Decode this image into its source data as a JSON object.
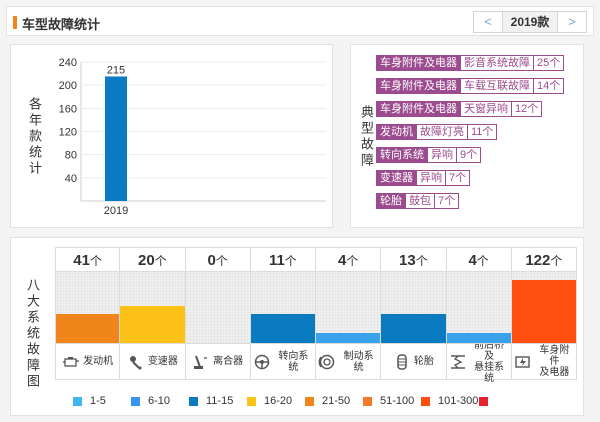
{
  "header": {
    "title": "车型故障统计",
    "year_selected": "2019款",
    "prev": "<",
    "next": ">"
  },
  "year_panel": {
    "ylabel": "各年款统计",
    "chart_data": {
      "type": "bar",
      "categories": [
        "2019"
      ],
      "values": [
        215
      ],
      "ylim": [
        0,
        240
      ],
      "yticks": [
        40,
        80,
        120,
        160,
        200,
        240
      ],
      "grid": true,
      "color": "#0b7bc1"
    }
  },
  "faults_panel": {
    "label": "典型故障",
    "items": [
      {
        "system": "车身附件及电器",
        "fault": "影音系统故障",
        "count": "25个"
      },
      {
        "system": "车身附件及电器",
        "fault": "车载互联故障",
        "count": "14个"
      },
      {
        "system": "车身附件及电器",
        "fault": "天窗异响",
        "count": "12个"
      },
      {
        "system": "发动机",
        "fault": "故障灯亮",
        "count": "11个"
      },
      {
        "system": "转向系统",
        "fault": "异响",
        "count": "9个"
      },
      {
        "system": "变速器",
        "fault": "异响",
        "count": "7个"
      },
      {
        "system": "轮胎",
        "fault": "鼓包",
        "count": "7个"
      }
    ]
  },
  "systems_panel": {
    "label": "八大系统故障图",
    "unit": "个",
    "systems": [
      {
        "name": "发动机",
        "count": 41,
        "level": 0.4,
        "color": "#f0861b",
        "icon": "engine-icon"
      },
      {
        "name": "变速器",
        "count": 20,
        "level": 0.52,
        "color": "#fcc217",
        "icon": "gearbox-icon"
      },
      {
        "name": "离合器",
        "count": 0,
        "level": 0,
        "color": "#f0f0f0",
        "icon": "clutch-icon"
      },
      {
        "name": "转向系统",
        "count": 11,
        "level": 0.4,
        "color": "#0b7bc1",
        "icon": "steering-wheel-icon"
      },
      {
        "name": "制动系统",
        "count": 4,
        "level": 0.14,
        "color": "#3aa2ea",
        "icon": "brake-icon"
      },
      {
        "name": "轮胎",
        "count": 13,
        "level": 0.4,
        "color": "#0b7bc1",
        "icon": "tire-icon"
      },
      {
        "name": "前后桥及悬挂系统",
        "count": 4,
        "level": 0.14,
        "color": "#3aa2ea",
        "icon": "suspension-icon"
      },
      {
        "name": "车身附件及电器",
        "count": 122,
        "level": 0.88,
        "color": "#fe4f10",
        "icon": "body-electric-icon"
      }
    ],
    "legend": [
      {
        "label": "1-5",
        "color": "#3fb7f2"
      },
      {
        "label": "6-10",
        "color": "#3a93ee"
      },
      {
        "label": "11-15",
        "color": "#0b7bc1"
      },
      {
        "label": "16-20",
        "color": "#fcc217"
      },
      {
        "label": "21-50",
        "color": "#f0861b"
      },
      {
        "label": "51-100",
        "color": "#f47a28"
      },
      {
        "label": "101-300",
        "color": "#fe4f10"
      },
      {
        "label": "",
        "color": "#e8212a"
      }
    ]
  }
}
